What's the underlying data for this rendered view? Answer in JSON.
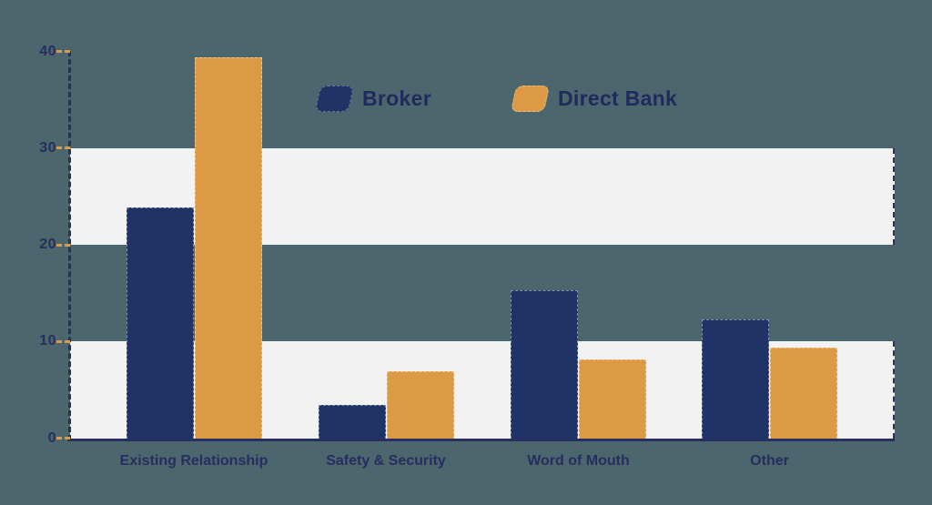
{
  "chart_data": {
    "type": "bar",
    "title": "",
    "categories": [
      "Existing Relationship",
      "Safety & Security",
      "Word of Mouth",
      "Other"
    ],
    "series": [
      {
        "name": "Broker",
        "color": "#1f3366",
        "values": [
          23.9,
          3.4,
          15.3,
          12.3
        ]
      },
      {
        "name": "Direct Bank",
        "color": "#dd9a45",
        "values": [
          39.4,
          6.9,
          8.1,
          9.4
        ]
      }
    ],
    "ylim": [
      0,
      40
    ],
    "yticks": [
      0,
      10,
      20,
      30,
      40
    ],
    "stripe_bands": [
      [
        0,
        10
      ],
      [
        20,
        30
      ]
    ],
    "grid": "off",
    "legend_position": "top-center",
    "axis_style": "dashed navy axis with orange dashed ticks",
    "background_color": "#4c666d",
    "stripe_color": "#f2f2f3"
  }
}
